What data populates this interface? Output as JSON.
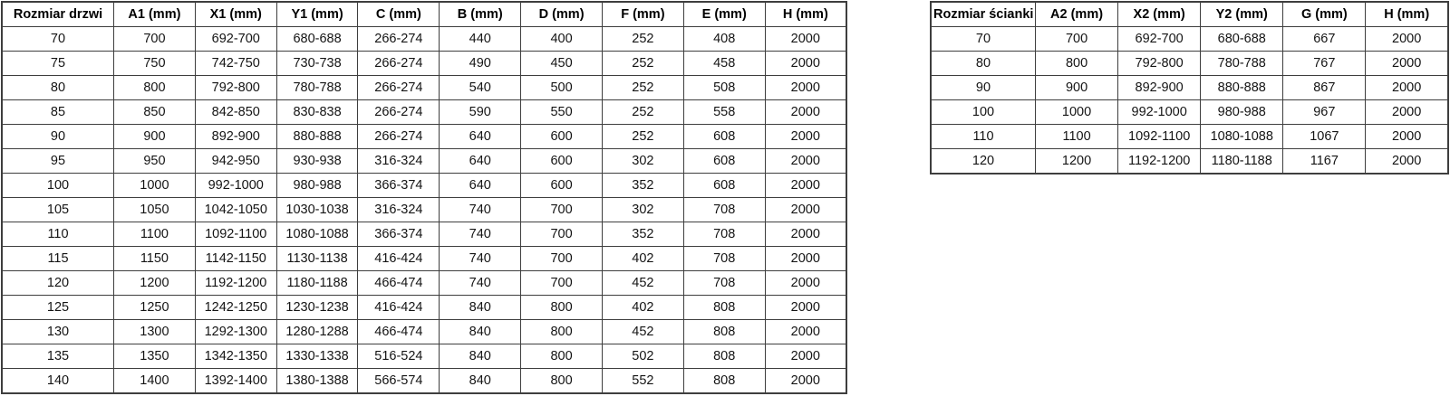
{
  "colors": {
    "border": "#3e3e3e",
    "header_text": "#000000",
    "cell_text": "#141414",
    "background": "#ffffff"
  },
  "tables": [
    {
      "id": "door-table",
      "title_column": "Rozmiar drzwi",
      "headers": [
        "Rozmiar drzwi",
        "A1 (mm)",
        "X1 (mm)",
        "Y1 (mm)",
        "C (mm)",
        "B (mm)",
        "D (mm)",
        "F (mm)",
        "E (mm)",
        "H (mm)"
      ],
      "rows": [
        [
          "70",
          "700",
          "692-700",
          "680-688",
          "266-274",
          "440",
          "400",
          "252",
          "408",
          "2000"
        ],
        [
          "75",
          "750",
          "742-750",
          "730-738",
          "266-274",
          "490",
          "450",
          "252",
          "458",
          "2000"
        ],
        [
          "80",
          "800",
          "792-800",
          "780-788",
          "266-274",
          "540",
          "500",
          "252",
          "508",
          "2000"
        ],
        [
          "85",
          "850",
          "842-850",
          "830-838",
          "266-274",
          "590",
          "550",
          "252",
          "558",
          "2000"
        ],
        [
          "90",
          "900",
          "892-900",
          "880-888",
          "266-274",
          "640",
          "600",
          "252",
          "608",
          "2000"
        ],
        [
          "95",
          "950",
          "942-950",
          "930-938",
          "316-324",
          "640",
          "600",
          "302",
          "608",
          "2000"
        ],
        [
          "100",
          "1000",
          "992-1000",
          "980-988",
          "366-374",
          "640",
          "600",
          "352",
          "608",
          "2000"
        ],
        [
          "105",
          "1050",
          "1042-1050",
          "1030-1038",
          "316-324",
          "740",
          "700",
          "302",
          "708",
          "2000"
        ],
        [
          "110",
          "1100",
          "1092-1100",
          "1080-1088",
          "366-374",
          "740",
          "700",
          "352",
          "708",
          "2000"
        ],
        [
          "115",
          "1150",
          "1142-1150",
          "1130-1138",
          "416-424",
          "740",
          "700",
          "402",
          "708",
          "2000"
        ],
        [
          "120",
          "1200",
          "1192-1200",
          "1180-1188",
          "466-474",
          "740",
          "700",
          "452",
          "708",
          "2000"
        ],
        [
          "125",
          "1250",
          "1242-1250",
          "1230-1238",
          "416-424",
          "840",
          "800",
          "402",
          "808",
          "2000"
        ],
        [
          "130",
          "1300",
          "1292-1300",
          "1280-1288",
          "466-474",
          "840",
          "800",
          "452",
          "808",
          "2000"
        ],
        [
          "135",
          "1350",
          "1342-1350",
          "1330-1338",
          "516-524",
          "840",
          "800",
          "502",
          "808",
          "2000"
        ],
        [
          "140",
          "1400",
          "1392-1400",
          "1380-1388",
          "566-574",
          "840",
          "800",
          "552",
          "808",
          "2000"
        ]
      ]
    },
    {
      "id": "wall-table",
      "title_column": "Rozmiar ścianki",
      "headers": [
        "Rozmiar ścianki",
        "A2 (mm)",
        "X2 (mm)",
        "Y2 (mm)",
        "G (mm)",
        "H (mm)"
      ],
      "rows": [
        [
          "70",
          "700",
          "692-700",
          "680-688",
          "667",
          "2000"
        ],
        [
          "80",
          "800",
          "792-800",
          "780-788",
          "767",
          "2000"
        ],
        [
          "90",
          "900",
          "892-900",
          "880-888",
          "867",
          "2000"
        ],
        [
          "100",
          "1000",
          "992-1000",
          "980-988",
          "967",
          "2000"
        ],
        [
          "110",
          "1100",
          "1092-1100",
          "1080-1088",
          "1067",
          "2000"
        ],
        [
          "120",
          "1200",
          "1192-1200",
          "1180-1188",
          "1167",
          "2000"
        ]
      ]
    }
  ]
}
